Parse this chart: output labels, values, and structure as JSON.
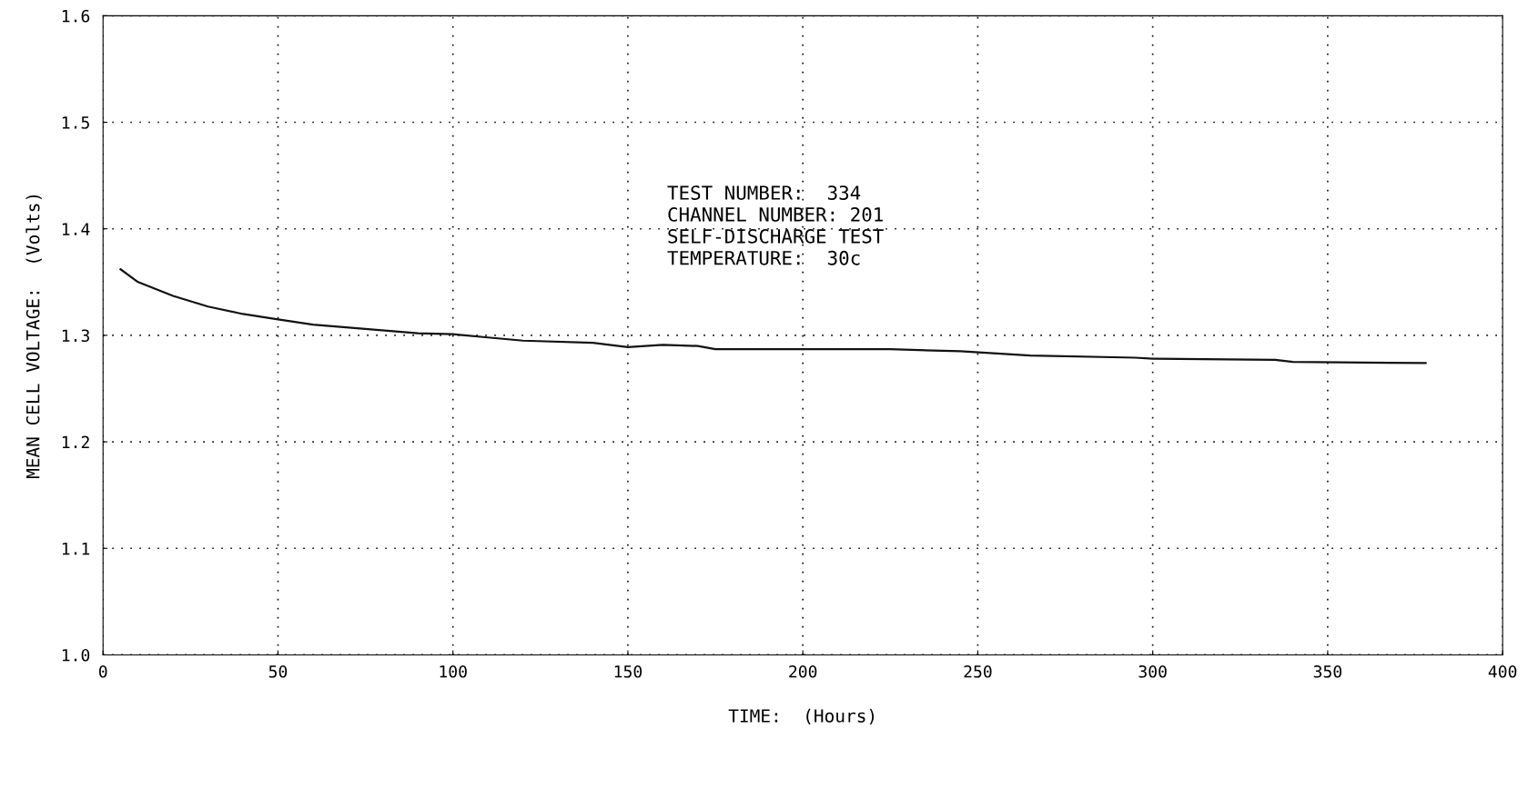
{
  "chart_data": {
    "type": "line",
    "xlabel": "TIME:  (Hours)",
    "ylabel": "MEAN CELL VOLTAGE:  (Volts)",
    "x": [
      5,
      10,
      20,
      30,
      40,
      50,
      60,
      75,
      90,
      100,
      110,
      120,
      140,
      150,
      160,
      170,
      175,
      200,
      225,
      245,
      265,
      295,
      300,
      335,
      340,
      378
    ],
    "series": [
      {
        "color": "#111111",
        "values": [
          1.362,
          1.35,
          1.337,
          1.327,
          1.32,
          1.315,
          1.31,
          1.306,
          1.302,
          1.301,
          1.298,
          1.295,
          1.293,
          1.289,
          1.291,
          1.29,
          1.287,
          1.287,
          1.287,
          1.285,
          1.281,
          1.279,
          1.278,
          1.277,
          1.275,
          1.274
        ]
      }
    ],
    "xlim": [
      0,
      400
    ],
    "xticks": [
      {
        "value": 0,
        "label": "0"
      },
      50,
      100,
      150,
      200,
      250,
      300,
      350,
      400
    ],
    "ylim": [
      1.0,
      1.6
    ],
    "yticks": [
      {
        "value": 1.0,
        "label": "1.0"
      },
      1.1,
      1.2,
      1.3,
      1.4,
      1.5,
      1.6
    ],
    "grid": true,
    "line_style": "solid",
    "marker": "none",
    "annotations": [
      "TEST NUMBER:  334",
      "CHANNEL NUMBER: 201",
      "SELF-DISCHARGE TEST",
      "TEMPERATURE:  30c"
    ]
  }
}
